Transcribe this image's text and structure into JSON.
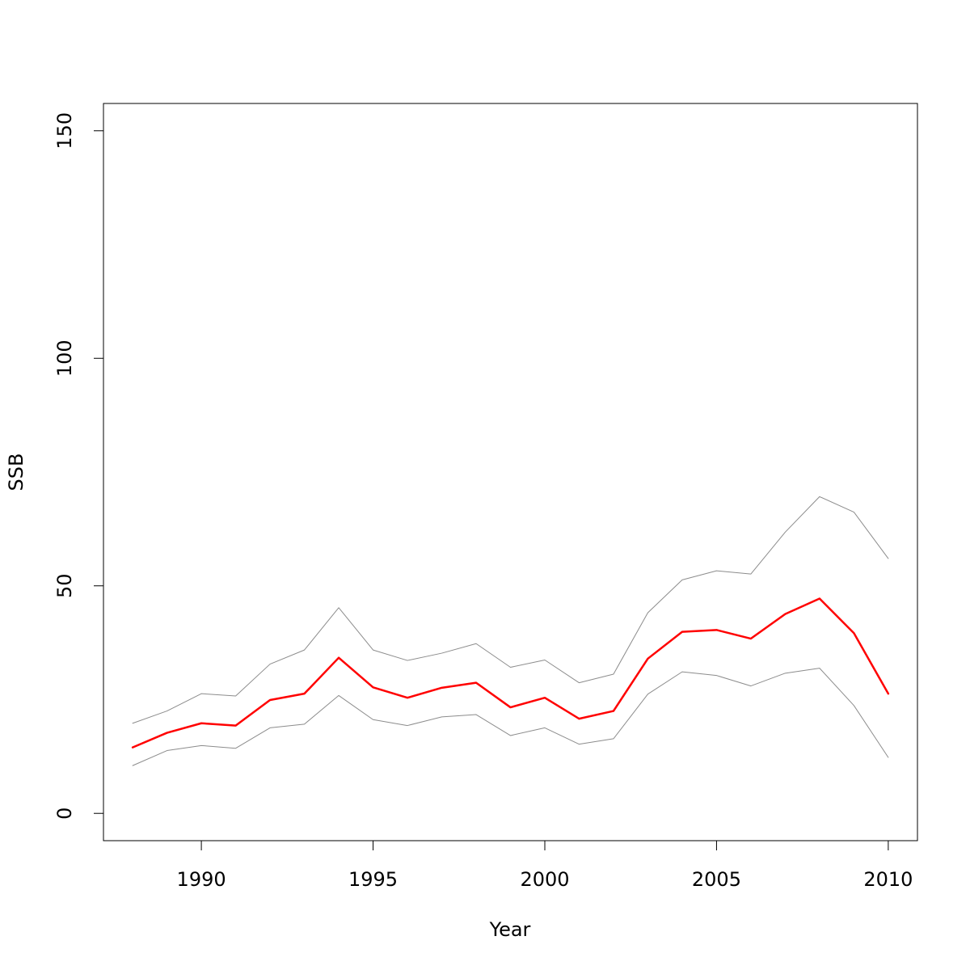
{
  "chart_data": {
    "type": "line",
    "xlabel": "Year",
    "ylabel": "SSB",
    "xlim": [
      1987.15,
      2010.85
    ],
    "ylim": [
      -6,
      156
    ],
    "x_ticks": [
      1990,
      1995,
      2000,
      2005,
      2010
    ],
    "x_tick_labels": [
      "1990",
      "1995",
      "2000",
      "2005",
      "2010"
    ],
    "y_ticks": [
      0,
      50,
      100,
      150
    ],
    "y_tick_labels": [
      "0",
      "50",
      "100",
      "150"
    ],
    "grid": false,
    "legend": "none",
    "x": [
      1988,
      1989,
      1990,
      1991,
      1992,
      1993,
      1994,
      1995,
      1996,
      1997,
      1998,
      1999,
      2000,
      2001,
      2002,
      2003,
      2004,
      2005,
      2006,
      2007,
      2008,
      2009,
      2010
    ],
    "series": [
      {
        "color": "#ff0000",
        "width": 2.5,
        "values": [
          14.5,
          17.7,
          19.8,
          19.3,
          24.9,
          26.3,
          34.2,
          27.7,
          25.4,
          27.6,
          28.7,
          23.3,
          25.4,
          20.8,
          22.5,
          34.0,
          39.9,
          40.3,
          38.4,
          43.8,
          47.2,
          39.6,
          26.3
        ]
      },
      {
        "color": "#8c8c8c",
        "width": 1,
        "values": [
          19.8,
          22.5,
          26.3,
          25.8,
          32.8,
          35.9,
          45.2,
          35.9,
          33.6,
          35.2,
          37.3,
          32.1,
          33.7,
          28.7,
          30.6,
          44.1,
          51.3,
          53.3,
          52.6,
          61.8,
          69.6,
          66.2,
          56.0
        ]
      },
      {
        "color": "#8c8c8c",
        "width": 1,
        "values": [
          10.5,
          13.8,
          14.9,
          14.3,
          18.8,
          19.6,
          25.9,
          20.6,
          19.3,
          21.2,
          21.7,
          17.1,
          18.8,
          15.2,
          16.4,
          26.2,
          31.1,
          30.3,
          28.0,
          30.8,
          31.9,
          23.7,
          12.3
        ]
      }
    ]
  }
}
